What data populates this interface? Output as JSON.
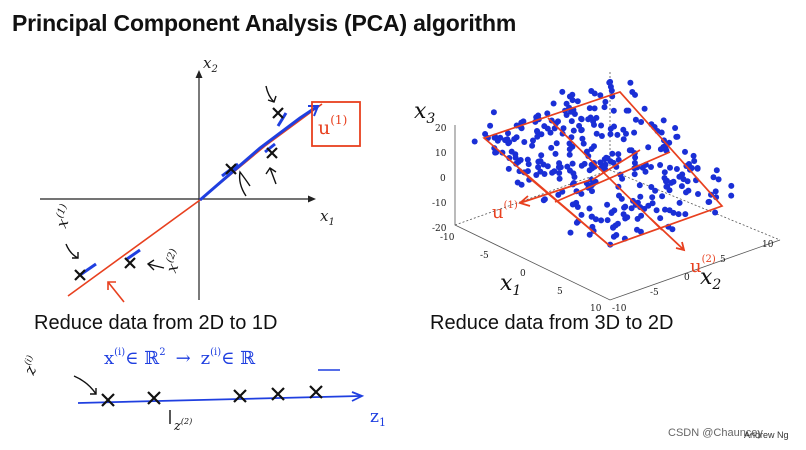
{
  "slide": {
    "title": "Principal Component Analysis (PCA) algorithm",
    "credit": "Andrew Ng",
    "watermark": "CSDN @Chauncey"
  },
  "left_panel": {
    "axis_x": "x",
    "axis_x_sub": "1",
    "axis_y": "x",
    "axis_y_sub": "2",
    "caption": "Reduce data from 2D to 1D"
  },
  "right_panel": {
    "axis_x1": "x",
    "axis_x1_sub": "1",
    "axis_x2": "x",
    "axis_x2_sub": "2",
    "axis_x3": "x",
    "axis_x3_sub": "3",
    "z_ticks": [
      "20",
      "10",
      "0",
      "-10",
      "-20"
    ],
    "x1_ticks": [
      "-10",
      "-5",
      "0",
      "5",
      "10"
    ],
    "x2_ticks": [
      "-10",
      "-5",
      "0",
      "5",
      "10"
    ],
    "caption": "Reduce data from 3D to 2D"
  },
  "annotations": {
    "u1": "u",
    "u1_sup": "(1)",
    "x1": "x",
    "x1_sup": "(1)",
    "x2": "x",
    "x2_sup": "(2)",
    "mapping_left": "x",
    "mapping_left_sup": "(i)",
    "mapping_in1": "∈ ℝ",
    "mapping_in1_sup": "2",
    "mapping_arrow": "→",
    "mapping_right": "z",
    "mapping_right_sup": "(i)",
    "mapping_in2": "∈ ℝ",
    "z1_label": "z",
    "z1_sub": "1",
    "z_i": "z",
    "z_i_sup": "(i)",
    "z_2": "z",
    "z_2_sup": "(2)",
    "u1_3d": "u",
    "u1_3d_sup": "(1)",
    "u2_3d": "u",
    "u2_3d_sup": "(2)"
  },
  "colors": {
    "ink_red": "#e8401f",
    "ink_blue": "#1f3fe0",
    "dots": "#1a2fd6",
    "axis": "#222222"
  }
}
